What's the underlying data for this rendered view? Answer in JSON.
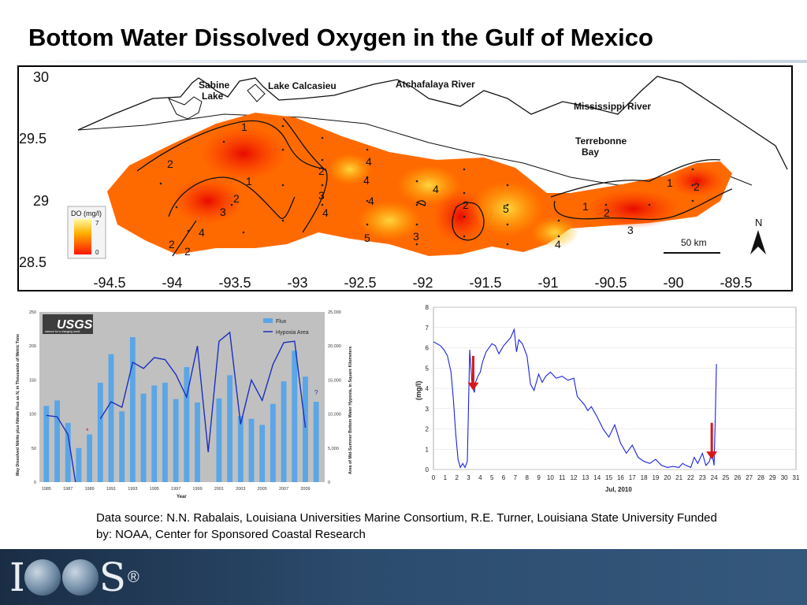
{
  "title": "Bottom Water Dissolved Oxygen in the Gulf of Mexico",
  "source_text": "Data source: N.N. Rabalais, Louisiana Universities Marine Consortium, R.E. Turner, Louisiana State University    Funded by: NOAA, Center for Sponsored Coastal Research",
  "logo_text": "IOOS",
  "logo_reg": "®",
  "chart_data": [
    {
      "type": "heatmap",
      "description_type": "contour map",
      "y_ticks": [
        "30",
        "29.5",
        "29",
        "28.5"
      ],
      "x_ticks": [
        "-94.5",
        "-94",
        "-93.5",
        "-93",
        "-92.5",
        "-92",
        "-91.5",
        "-91",
        "-90.5",
        "-90",
        "-89.5"
      ],
      "place_labels": [
        "Sabine",
        "Lake",
        "Lake Calcasieu",
        "Atchafalaya River",
        "Mississippi River",
        "Terrebonne",
        "Bay"
      ],
      "legend_title": "DO (mg/l)",
      "legend_max": "7",
      "legend_min": "0",
      "scale_bar": "50 km",
      "north": "N",
      "contour_labels": [
        "1",
        "2",
        "2",
        "1",
        "2",
        "3",
        "2",
        "3",
        "4",
        "4",
        "4",
        "4",
        "5",
        "3",
        "4",
        "2",
        "5",
        "4",
        "1",
        "2",
        "3",
        "1",
        "2",
        "2",
        "4"
      ],
      "colors": {
        "low": "#ff1a00",
        "mid": "#ff8a00",
        "high": "#ffe94a"
      }
    },
    {
      "type": "bar",
      "logo": "USGS",
      "logo_sub": "science for a changing world",
      "categories": [
        "1985",
        "1986",
        "1987",
        "1988",
        "1989",
        "1990",
        "1991",
        "1992",
        "1993",
        "1994",
        "1995",
        "1996",
        "1997",
        "1998",
        "1999",
        "2000",
        "2001",
        "2002",
        "2003",
        "2004",
        "2005",
        "2006",
        "2007",
        "2008",
        "2009",
        "2010"
      ],
      "x_tick_labels": [
        "1985",
        "1987",
        "1989",
        "1991",
        "1993",
        "1995",
        "1997",
        "1999",
        "2001",
        "2003",
        "2005",
        "2007",
        "2009"
      ],
      "series": [
        {
          "name": "Flux",
          "type": "bar",
          "axis": "left",
          "values": [
            112,
            120,
            87,
            50,
            70,
            146,
            188,
            104,
            213,
            130,
            142,
            146,
            122,
            169,
            117,
            null,
            123,
            157,
            97,
            93,
            84,
            115,
            148,
            193,
            155,
            118
          ]
        },
        {
          "name": "Hypoxia Area",
          "type": "line",
          "axis": "right",
          "values": [
            9800,
            9600,
            7000,
            null,
            null,
            9300,
            11800,
            11000,
            17600,
            16700,
            18300,
            18000,
            15800,
            12500,
            20000,
            4400,
            20700,
            22000,
            8500,
            15000,
            12000,
            17300,
            20500,
            20700,
            8000,
            null
          ]
        }
      ],
      "markers": [
        "*",
        "?"
      ],
      "ylabel": "May Dissolved Nitrite plus Nitrate Flux as N, in Thousands of Metric Tons",
      "y2label": "Area of Mid-Summer Bottom Water Hypoxia, in Square Kilometers",
      "xlabel": "Year",
      "ylim": [
        0,
        250
      ],
      "y_ticks": [
        "0",
        "50",
        "100",
        "150",
        "200",
        "250"
      ],
      "y2lim": [
        0,
        25000
      ],
      "y2_ticks": [
        "0",
        "5,000",
        "10,000",
        "15,000",
        "20,000",
        "25,000"
      ],
      "colors": {
        "bar": "#5aa6e6",
        "line": "#1a2fbf",
        "background": "#c0c0c0",
        "marker": "#c8102e"
      }
    },
    {
      "type": "line",
      "xlabel": "Jul, 2010",
      "ylabel": "(mg/l)",
      "ylim": [
        0,
        8
      ],
      "y_ticks": [
        "0",
        "1",
        "2",
        "3",
        "4",
        "5",
        "6",
        "7",
        "8"
      ],
      "xlim": [
        0,
        31
      ],
      "x_ticks": [
        "0",
        "1",
        "2",
        "3",
        "4",
        "5",
        "6",
        "7",
        "8",
        "9",
        "10",
        "11",
        "12",
        "13",
        "14",
        "15",
        "16",
        "17",
        "18",
        "19",
        "20",
        "21",
        "22",
        "23",
        "24",
        "25",
        "26",
        "27",
        "28",
        "29",
        "30",
        "31"
      ],
      "series": [
        {
          "name": "",
          "x": [
            0.0,
            0.3,
            0.6,
            0.9,
            1.2,
            1.5,
            1.7,
            1.9,
            2.1,
            2.3,
            2.5,
            2.7,
            2.9,
            3.1,
            3.3,
            3.5,
            3.6,
            3.8,
            4.0,
            4.2,
            4.5,
            5.0,
            5.3,
            5.6,
            6.0,
            6.3,
            6.6,
            6.9,
            7.1,
            7.3,
            7.6,
            8.0,
            8.3,
            8.6,
            9.0,
            9.3,
            9.6,
            10.0,
            10.5,
            11.0,
            11.5,
            12.0,
            12.3,
            12.6,
            12.9,
            13.2,
            13.5,
            14.0,
            14.5,
            15.0,
            15.5,
            16.0,
            16.5,
            17.0,
            17.5,
            18.0,
            18.5,
            19.0,
            19.5,
            20.0,
            20.5,
            21.0,
            21.3,
            21.6,
            22.0,
            22.3,
            22.6,
            23.0,
            23.3,
            23.6,
            23.8,
            24.0,
            24.1,
            24.2
          ],
          "y": [
            6.3,
            6.2,
            6.1,
            5.9,
            5.6,
            4.8,
            3.5,
            1.8,
            0.5,
            0.1,
            0.3,
            0.1,
            0.4,
            5.9,
            4.2,
            3.8,
            4.3,
            4.6,
            4.8,
            5.3,
            5.8,
            6.2,
            6.1,
            5.7,
            6.1,
            6.3,
            6.5,
            6.9,
            5.8,
            6.4,
            6.2,
            5.6,
            4.2,
            3.9,
            4.7,
            4.3,
            4.6,
            4.8,
            4.5,
            4.6,
            4.4,
            4.5,
            3.6,
            3.4,
            3.2,
            2.9,
            3.1,
            2.6,
            2.0,
            1.6,
            2.2,
            1.3,
            0.8,
            1.2,
            0.6,
            0.4,
            0.3,
            0.5,
            0.2,
            0.1,
            0.15,
            0.1,
            0.3,
            0.2,
            0.1,
            0.6,
            0.3,
            0.8,
            0.2,
            0.4,
            0.9,
            0.2,
            2.5,
            5.2
          ]
        }
      ],
      "arrows": [
        {
          "x": 3.4,
          "from": 5.6,
          "to": 3.9
        },
        {
          "x": 23.8,
          "from": 2.3,
          "to": 0.5
        }
      ],
      "colors": {
        "line": "#1a22dd",
        "arrow": "#d81818"
      }
    }
  ]
}
